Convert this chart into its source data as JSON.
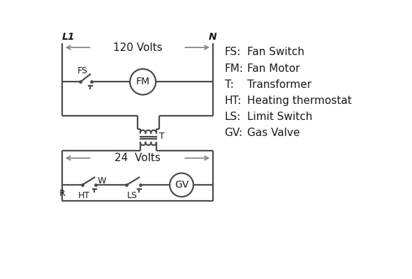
{
  "background_color": "#ffffff",
  "line_color": "#4a4a4a",
  "arrow_color": "#888888",
  "text_color": "#1a1a1a",
  "legend_items": [
    [
      "FS:",
      "Fan Switch"
    ],
    [
      "FM:",
      "Fan Motor"
    ],
    [
      "T:",
      "Transformer"
    ],
    [
      "HT:",
      "Heating thermostat"
    ],
    [
      "LS:",
      "Limit Switch"
    ],
    [
      "GV:",
      "Gas Valve"
    ]
  ],
  "L1_label": "L1",
  "N_label": "N",
  "volts120_label": "120 Volts",
  "volts24_label": "24  Volts",
  "T_label": "T",
  "R_label": "R",
  "W_label": "W",
  "HT_label": "HT",
  "LS_label": "LS",
  "FS_label": "FS",
  "FM_label": "FM",
  "GV_label": "GV"
}
